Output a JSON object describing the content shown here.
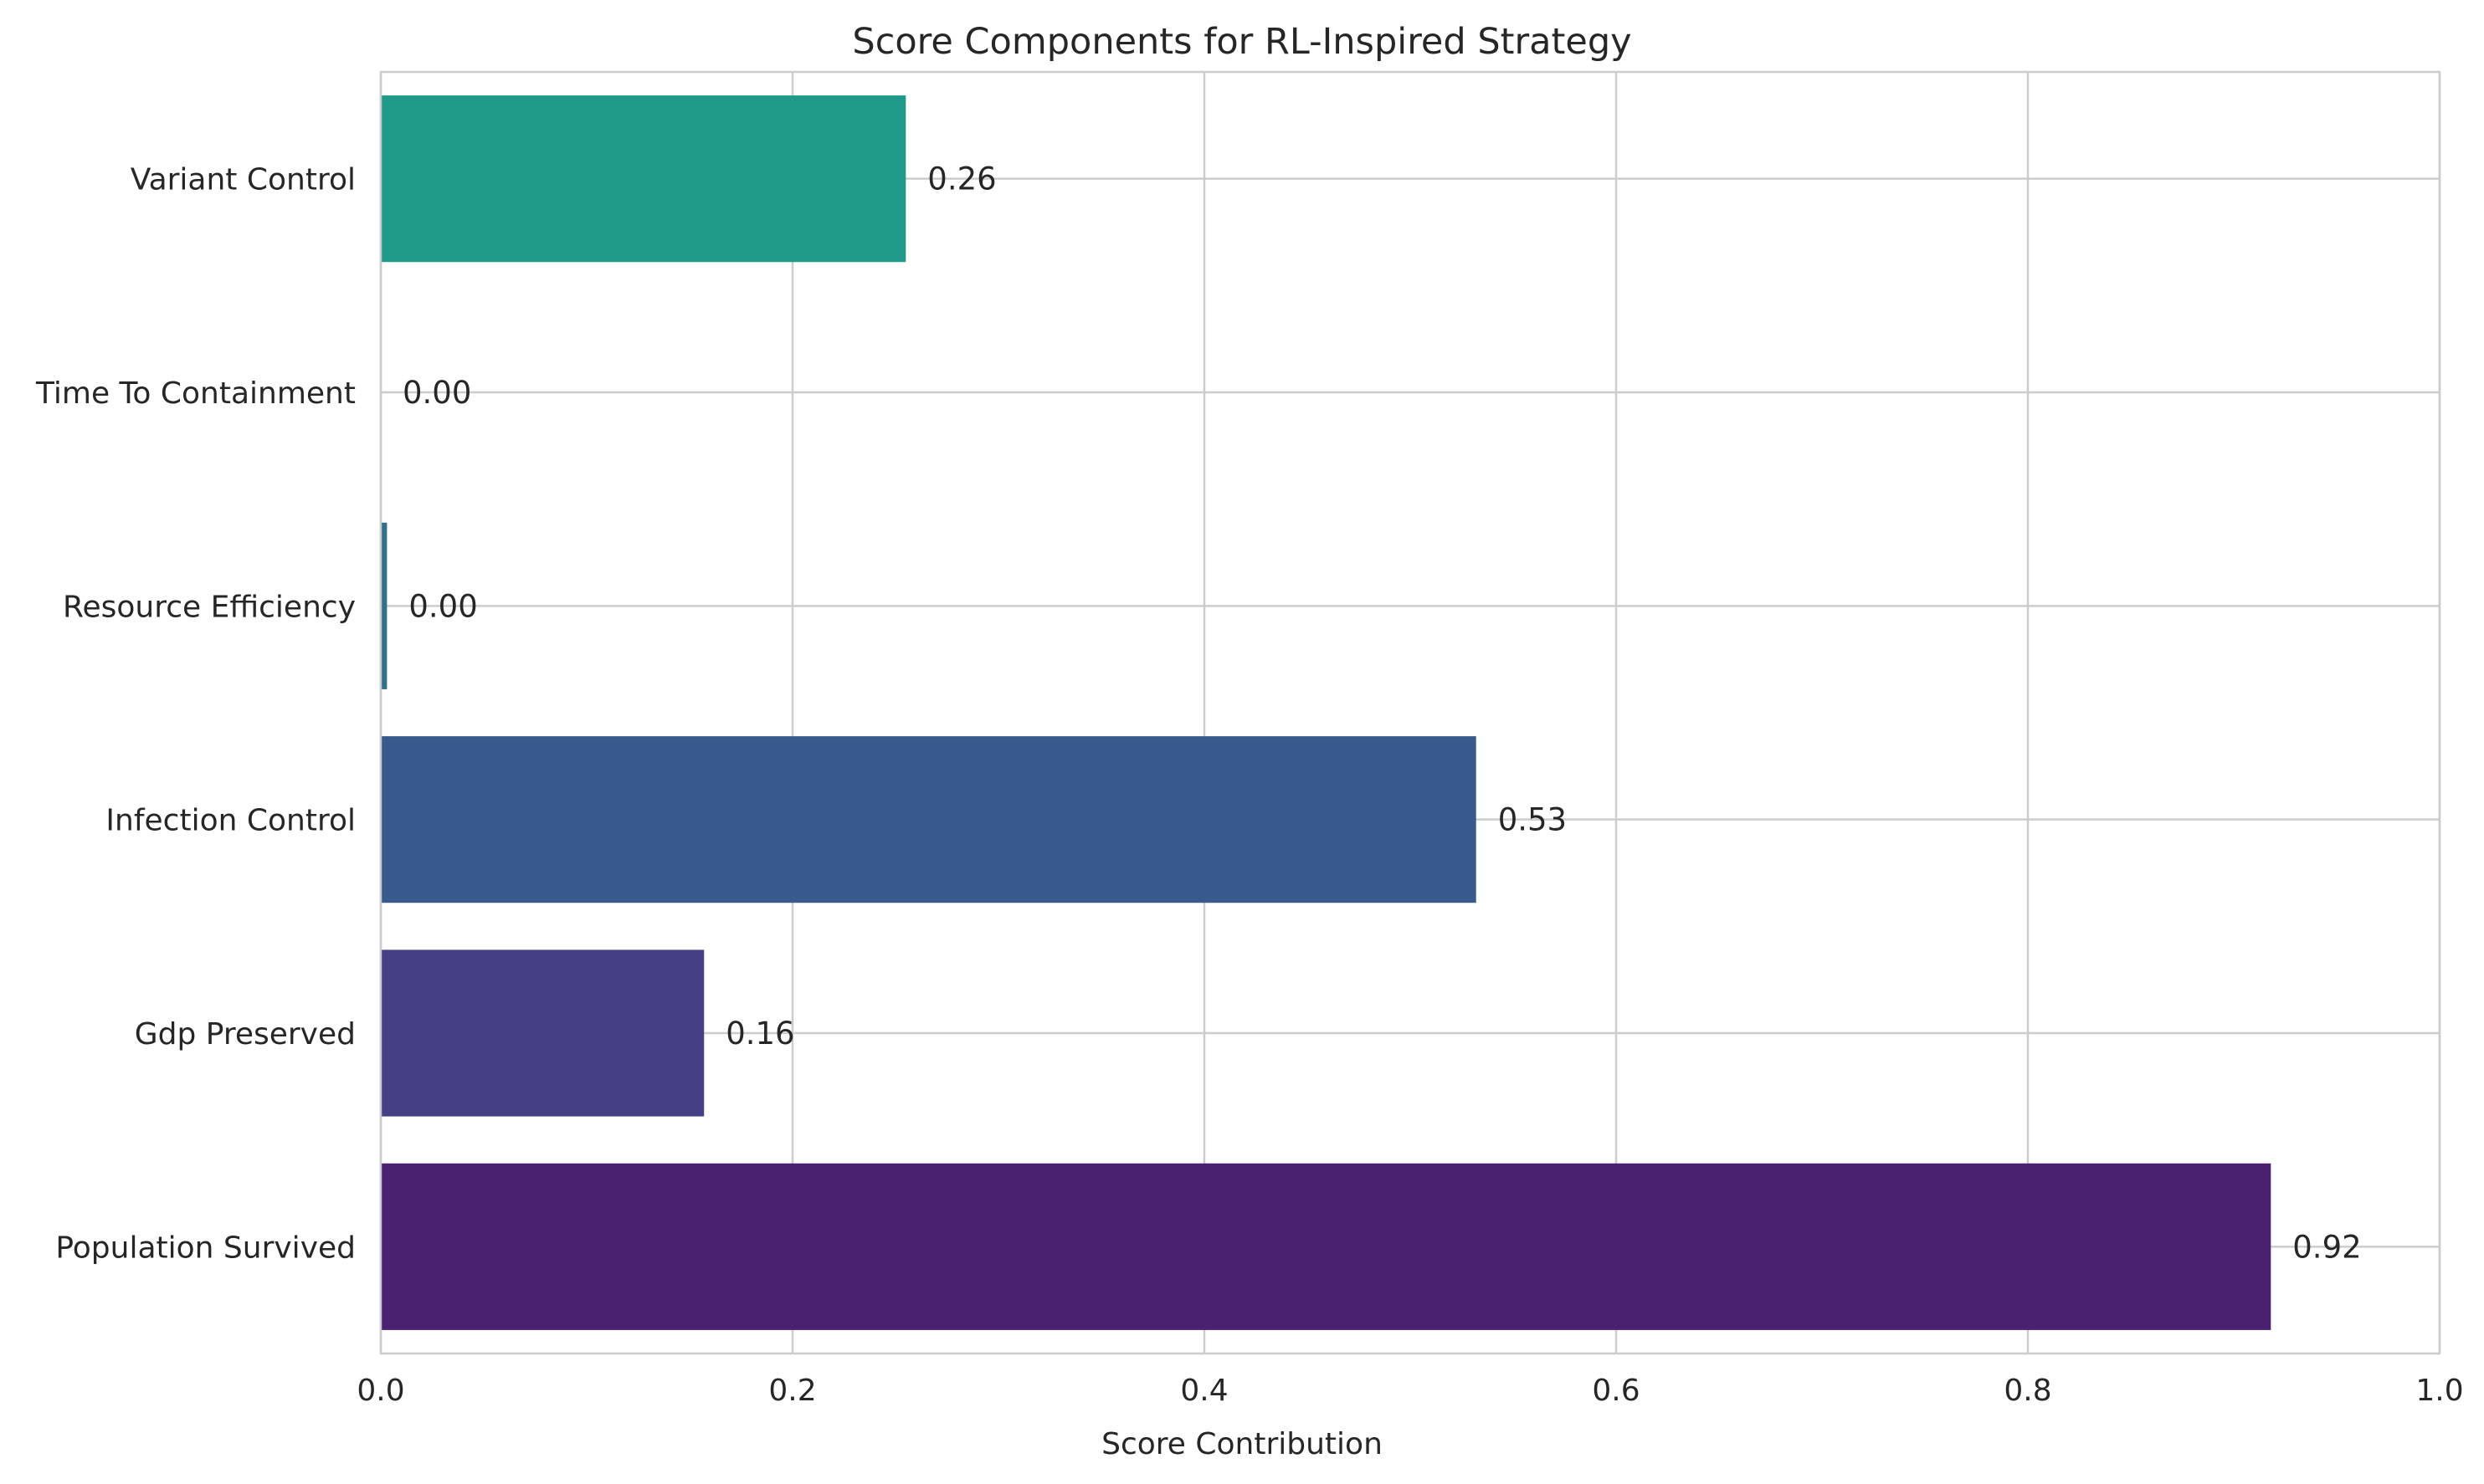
{
  "chart_data": {
    "type": "bar",
    "orientation": "horizontal",
    "title": "Score Components for RL-Inspired Strategy",
    "xlabel": "Score Contribution",
    "ylabel": "",
    "xlim": [
      0,
      1.0
    ],
    "x_ticks": [
      0.0,
      0.2,
      0.4,
      0.6,
      0.8,
      1.0
    ],
    "x_tick_labels": [
      "0.0",
      "0.2",
      "0.4",
      "0.6",
      "0.8",
      "1.0"
    ],
    "grid": true,
    "categories": [
      "Population Survived",
      "Gdp Preserved",
      "Infection Control",
      "Resource Efficiency",
      "Time To Containment",
      "Variant Control"
    ],
    "values": [
      0.918,
      0.157,
      0.532,
      0.003,
      0.0,
      0.255
    ],
    "value_labels": [
      "0.92",
      "0.16",
      "0.53",
      "0.00",
      "0.00",
      "0.26"
    ],
    "colors": [
      "#4a2070",
      "#453f85",
      "#395a8c",
      "#2f708d",
      "#21918c",
      "#1f9a8a"
    ],
    "grid_color": "#cccccc",
    "text_color": "#262626"
  }
}
